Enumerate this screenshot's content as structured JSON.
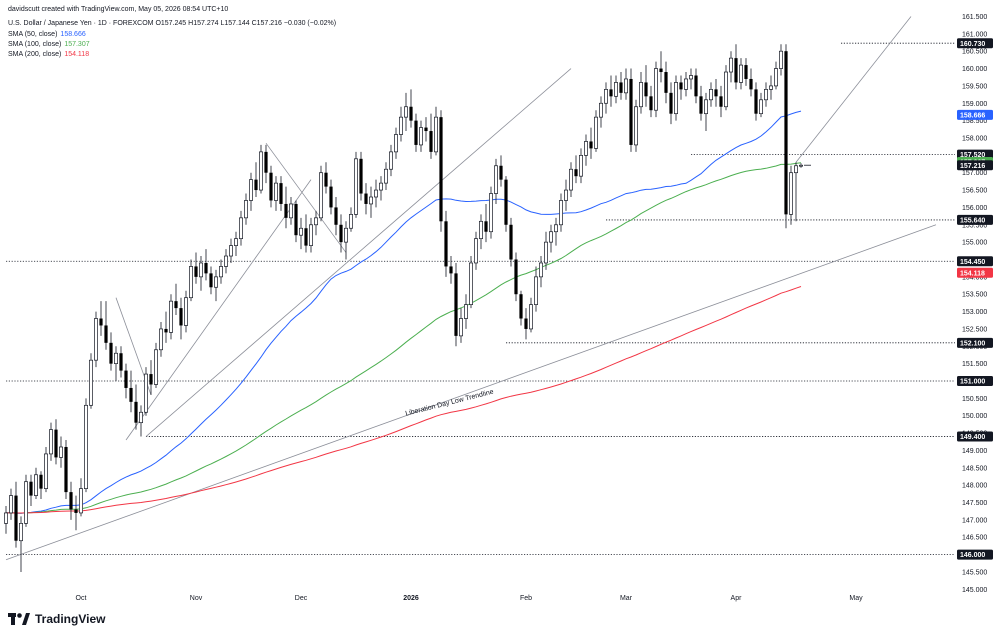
{
  "header": {
    "credit": "davidscutt created with TradingView.com, May 05, 2026 08:54 UTC+10",
    "symbol_line": "U.S. Dollar / Japanese Yen · 1D · FOREXCOM  O157.245  H157.274  L157.144  C157.216  −0.030 (−0.02%)",
    "sma50_label": "SMA (50, close)",
    "sma50_value": "158.666",
    "sma100_label": "SMA (100, close)",
    "sma100_value": "157.307",
    "sma200_label": "SMA (200, close)",
    "sma200_value": "154.118"
  },
  "brand": {
    "name": "TradingView",
    "logo_icon": "tradingview-logo-icon"
  },
  "colors": {
    "up": "#131722",
    "down": "#000000",
    "sma50": "#2962ff",
    "sma100": "#4caf50",
    "sma200": "#f23645",
    "grid_line": "#787b86"
  },
  "chart_data": {
    "type": "candlestick",
    "y_axis": {
      "min": 144.75,
      "max": 161.6,
      "ticks": [
        "161.500",
        "161.000",
        "160.500",
        "160.000",
        "159.500",
        "159.000",
        "158.500",
        "158.000",
        "157.500",
        "157.000",
        "156.500",
        "156.000",
        "155.500",
        "155.000",
        "154.500",
        "154.000",
        "153.500",
        "153.000",
        "152.500",
        "152.000",
        "151.500",
        "151.000",
        "150.500",
        "150.000",
        "149.500",
        "149.000",
        "148.500",
        "148.000",
        "147.500",
        "147.000",
        "146.500",
        "146.000",
        "145.500",
        "145.000"
      ]
    },
    "x_axis": {
      "labels": [
        {
          "label": "Oct",
          "bar": 15
        },
        {
          "label": "Nov",
          "bar": 38
        },
        {
          "label": "Dec",
          "bar": 59
        },
        {
          "label": "2026",
          "bar": 81
        },
        {
          "label": "Feb",
          "bar": 104
        },
        {
          "label": "Mar",
          "bar": 124
        },
        {
          "label": "Apr",
          "bar": 146
        },
        {
          "label": "May",
          "bar": 170
        }
      ]
    },
    "horizontal_levels": [
      {
        "value": 160.73,
        "label": "160.730",
        "from_bar": 167
      },
      {
        "value": 157.52,
        "label": "157.520",
        "from_bar": 137
      },
      {
        "value": 155.64,
        "label": "155.640",
        "from_bar": 120
      },
      {
        "value": 154.45,
        "label": "154.450",
        "from_bar": 0
      },
      {
        "value": 152.1,
        "label": "152.100",
        "from_bar": 100
      },
      {
        "value": 151.0,
        "label": "151.000",
        "from_bar": 0
      },
      {
        "value": 149.4,
        "label": "149.400",
        "from_bar": 28
      },
      {
        "value": 146.0,
        "label": "146.000",
        "from_bar": 0
      }
    ],
    "current_price": {
      "value": 157.216,
      "label": "157.216"
    },
    "sma_badges": [
      {
        "name": "SMA 50",
        "value": 158.666,
        "label": "158.666",
        "color": "#2962ff"
      },
      {
        "name": "SMA 100",
        "value": 157.307,
        "label": "157.307",
        "color": "#4caf50"
      },
      {
        "name": "SMA 200",
        "value": 154.118,
        "label": "154.118",
        "color": "#f23645"
      }
    ],
    "trendlines": [
      {
        "x1": 0,
        "y1": 145.85,
        "x2": 186,
        "y2": 155.5
      },
      {
        "x1": 28,
        "y1": 149.4,
        "x2": 113,
        "y2": 160.0
      },
      {
        "x1": 24,
        "y1": 149.3,
        "x2": 61,
        "y2": 156.8
      },
      {
        "x1": 52,
        "y1": 157.85,
        "x2": 68,
        "y2": 154.7
      },
      {
        "x1": 22,
        "y1": 153.4,
        "x2": 29,
        "y2": 150.6
      },
      {
        "x1": 158,
        "y1": 157.3,
        "x2": 181,
        "y2": 161.5
      }
    ],
    "annotation": {
      "text": "Liberation Day Low Trendline",
      "x": 80,
      "y": 150.0,
      "angle": -14.2
    },
    "candles": [
      [
        146.9,
        147.4,
        146.6,
        147.2
      ],
      [
        147.2,
        147.9,
        147.0,
        147.7
      ],
      [
        147.7,
        148.1,
        146.2,
        146.4
      ],
      [
        146.4,
        147.1,
        145.5,
        146.9
      ],
      [
        146.9,
        148.3,
        146.8,
        148.1
      ],
      [
        148.1,
        148.3,
        147.4,
        147.7
      ],
      [
        147.7,
        148.5,
        147.6,
        148.3
      ],
      [
        148.3,
        148.4,
        147.6,
        147.9
      ],
      [
        147.9,
        149.1,
        147.8,
        148.9
      ],
      [
        148.9,
        149.8,
        148.7,
        149.6
      ],
      [
        149.6,
        149.9,
        148.6,
        148.8
      ],
      [
        148.8,
        149.4,
        148.5,
        149.1
      ],
      [
        149.1,
        149.3,
        147.6,
        147.8
      ],
      [
        147.8,
        148.1,
        147.0,
        147.3
      ],
      [
        147.3,
        147.7,
        146.7,
        147.2
      ],
      [
        147.2,
        148.2,
        147.1,
        147.9
      ],
      [
        147.9,
        150.5,
        147.8,
        150.3
      ],
      [
        150.3,
        151.8,
        150.2,
        151.6
      ],
      [
        151.6,
        153.0,
        151.4,
        152.8
      ],
      [
        152.8,
        153.3,
        152.3,
        152.6
      ],
      [
        152.6,
        153.3,
        151.9,
        152.1
      ],
      [
        152.1,
        152.4,
        151.3,
        151.5
      ],
      [
        151.5,
        152.0,
        151.0,
        151.8
      ],
      [
        151.8,
        152.0,
        151.1,
        151.3
      ],
      [
        151.3,
        151.5,
        150.5,
        150.8
      ],
      [
        150.8,
        151.3,
        150.1,
        150.4
      ],
      [
        150.4,
        150.9,
        149.6,
        149.8
      ],
      [
        149.8,
        150.3,
        149.4,
        150.1
      ],
      [
        150.1,
        151.4,
        150.0,
        151.2
      ],
      [
        151.2,
        151.6,
        150.6,
        150.9
      ],
      [
        150.9,
        152.1,
        150.8,
        151.9
      ],
      [
        151.9,
        152.7,
        151.7,
        152.5
      ],
      [
        152.5,
        153.0,
        152.1,
        152.4
      ],
      [
        152.4,
        153.5,
        152.2,
        153.3
      ],
      [
        153.3,
        153.8,
        152.9,
        153.1
      ],
      [
        153.1,
        153.4,
        152.2,
        152.6
      ],
      [
        152.6,
        153.6,
        152.4,
        153.4
      ],
      [
        153.4,
        154.5,
        153.3,
        154.3
      ],
      [
        154.3,
        154.7,
        153.8,
        154.0
      ],
      [
        154.0,
        154.6,
        153.6,
        154.4
      ],
      [
        154.4,
        154.8,
        153.9,
        154.1
      ],
      [
        154.1,
        154.3,
        153.5,
        153.7
      ],
      [
        153.7,
        154.2,
        153.3,
        154.0
      ],
      [
        154.0,
        154.5,
        153.8,
        154.3
      ],
      [
        154.3,
        154.8,
        154.1,
        154.6
      ],
      [
        154.6,
        155.1,
        154.4,
        154.9
      ],
      [
        154.9,
        155.3,
        154.6,
        155.1
      ],
      [
        155.1,
        155.9,
        154.9,
        155.7
      ],
      [
        155.7,
        156.4,
        155.5,
        156.2
      ],
      [
        156.2,
        157.0,
        155.9,
        156.8
      ],
      [
        156.8,
        157.3,
        156.3,
        156.5
      ],
      [
        156.5,
        157.8,
        156.4,
        157.6
      ],
      [
        157.6,
        157.8,
        156.7,
        157.0
      ],
      [
        157.0,
        157.2,
        156.0,
        156.2
      ],
      [
        156.2,
        156.9,
        155.9,
        156.7
      ],
      [
        156.7,
        156.9,
        155.9,
        156.1
      ],
      [
        156.1,
        156.6,
        155.4,
        155.7
      ],
      [
        155.7,
        156.3,
        155.5,
        156.1
      ],
      [
        156.1,
        156.2,
        155.0,
        155.2
      ],
      [
        155.2,
        155.7,
        154.8,
        155.4
      ],
      [
        155.4,
        155.8,
        154.7,
        154.9
      ],
      [
        154.9,
        155.7,
        154.7,
        155.5
      ],
      [
        155.5,
        155.9,
        155.2,
        155.7
      ],
      [
        155.7,
        157.2,
        155.6,
        157.0
      ],
      [
        157.0,
        157.3,
        156.4,
        156.6
      ],
      [
        156.6,
        156.8,
        155.8,
        156.0
      ],
      [
        156.0,
        156.3,
        155.2,
        155.5
      ],
      [
        155.5,
        155.8,
        154.7,
        155.0
      ],
      [
        155.0,
        155.6,
        154.5,
        155.4
      ],
      [
        155.4,
        156.0,
        155.3,
        155.8
      ],
      [
        155.8,
        157.6,
        155.7,
        157.4
      ],
      [
        157.4,
        157.6,
        156.2,
        156.4
      ],
      [
        156.4,
        156.7,
        155.8,
        156.1
      ],
      [
        156.1,
        156.6,
        155.7,
        156.3
      ],
      [
        156.3,
        156.8,
        156.0,
        156.5
      ],
      [
        156.5,
        156.9,
        156.2,
        156.7
      ],
      [
        156.7,
        157.3,
        156.5,
        157.1
      ],
      [
        157.1,
        157.8,
        156.9,
        157.6
      ],
      [
        157.6,
        158.3,
        157.4,
        158.1
      ],
      [
        158.1,
        158.9,
        157.9,
        158.6
      ],
      [
        158.6,
        159.3,
        158.2,
        158.9
      ],
      [
        158.9,
        159.4,
        158.3,
        158.5
      ],
      [
        158.5,
        158.7,
        157.6,
        157.8
      ],
      [
        157.8,
        158.5,
        157.6,
        158.3
      ],
      [
        158.3,
        158.6,
        157.9,
        158.2
      ],
      [
        158.2,
        158.7,
        157.4,
        157.6
      ],
      [
        157.6,
        158.9,
        157.5,
        158.6
      ],
      [
        158.6,
        158.8,
        155.3,
        155.6
      ],
      [
        155.6,
        155.9,
        154.0,
        154.3
      ],
      [
        154.3,
        154.6,
        153.8,
        154.1
      ],
      [
        154.1,
        154.4,
        152.0,
        152.3
      ],
      [
        152.3,
        153.1,
        152.1,
        152.8
      ],
      [
        152.8,
        153.5,
        152.5,
        153.2
      ],
      [
        153.2,
        154.6,
        153.1,
        154.4
      ],
      [
        154.4,
        155.3,
        154.2,
        155.1
      ],
      [
        155.1,
        155.8,
        154.8,
        155.6
      ],
      [
        155.6,
        156.1,
        155.0,
        155.3
      ],
      [
        155.3,
        156.6,
        155.1,
        156.4
      ],
      [
        156.4,
        157.4,
        156.1,
        157.2
      ],
      [
        157.2,
        157.5,
        156.6,
        156.8
      ],
      [
        156.8,
        156.9,
        155.3,
        155.5
      ],
      [
        155.5,
        155.7,
        154.3,
        154.5
      ],
      [
        154.5,
        154.7,
        153.3,
        153.5
      ],
      [
        153.5,
        153.6,
        152.6,
        152.8
      ],
      [
        152.8,
        153.1,
        152.2,
        152.5
      ],
      [
        152.5,
        153.4,
        152.4,
        153.2
      ],
      [
        153.2,
        154.3,
        153.0,
        154.0
      ],
      [
        154.0,
        154.6,
        153.7,
        154.4
      ],
      [
        154.4,
        155.3,
        154.2,
        155.0
      ],
      [
        155.0,
        155.5,
        154.7,
        155.3
      ],
      [
        155.3,
        155.7,
        154.9,
        155.5
      ],
      [
        155.5,
        156.4,
        155.3,
        156.2
      ],
      [
        156.2,
        156.8,
        155.9,
        156.5
      ],
      [
        156.5,
        157.3,
        156.3,
        157.1
      ],
      [
        157.1,
        157.5,
        156.7,
        156.9
      ],
      [
        156.9,
        157.7,
        156.7,
        157.5
      ],
      [
        157.5,
        158.1,
        157.2,
        157.9
      ],
      [
        157.9,
        158.3,
        157.4,
        157.7
      ],
      [
        157.7,
        158.8,
        157.6,
        158.6
      ],
      [
        158.6,
        159.2,
        158.3,
        159.0
      ],
      [
        159.0,
        159.6,
        158.7,
        159.4
      ],
      [
        159.4,
        159.8,
        158.9,
        159.2
      ],
      [
        159.2,
        159.8,
        159.0,
        159.6
      ],
      [
        159.6,
        159.9,
        159.1,
        159.3
      ],
      [
        159.3,
        160.0,
        159.1,
        159.7
      ],
      [
        159.7,
        160.0,
        157.6,
        157.8
      ],
      [
        157.8,
        159.1,
        157.6,
        158.9
      ],
      [
        158.9,
        159.9,
        158.7,
        159.6
      ],
      [
        159.6,
        160.1,
        158.9,
        159.2
      ],
      [
        159.2,
        159.5,
        158.6,
        158.8
      ],
      [
        158.8,
        160.2,
        158.6,
        160.0
      ],
      [
        160.0,
        160.5,
        159.6,
        159.9
      ],
      [
        159.9,
        160.2,
        159.0,
        159.3
      ],
      [
        159.3,
        159.6,
        158.4,
        158.7
      ],
      [
        158.7,
        159.8,
        158.5,
        159.6
      ],
      [
        159.6,
        159.8,
        159.1,
        159.4
      ],
      [
        159.4,
        159.9,
        159.2,
        159.7
      ],
      [
        159.7,
        160.0,
        159.4,
        159.8
      ],
      [
        159.8,
        160.0,
        159.0,
        159.2
      ],
      [
        159.2,
        159.5,
        158.5,
        158.7
      ],
      [
        158.7,
        159.3,
        158.2,
        159.1
      ],
      [
        159.1,
        159.6,
        158.9,
        159.4
      ],
      [
        159.4,
        159.7,
        158.9,
        159.2
      ],
      [
        159.2,
        159.5,
        158.6,
        158.9
      ],
      [
        158.9,
        160.1,
        158.8,
        159.9
      ],
      [
        159.9,
        160.5,
        159.6,
        160.3
      ],
      [
        160.3,
        160.7,
        159.4,
        159.6
      ],
      [
        159.6,
        160.3,
        159.4,
        160.1
      ],
      [
        160.1,
        160.3,
        159.5,
        159.7
      ],
      [
        159.7,
        160.0,
        159.2,
        159.4
      ],
      [
        159.4,
        159.6,
        158.5,
        158.7
      ],
      [
        158.7,
        159.3,
        158.6,
        159.1
      ],
      [
        159.1,
        159.6,
        158.9,
        159.4
      ],
      [
        159.4,
        159.8,
        159.1,
        159.5
      ],
      [
        159.5,
        160.2,
        159.4,
        160.0
      ],
      [
        160.0,
        160.7,
        159.8,
        160.5
      ],
      [
        160.5,
        160.7,
        155.4,
        155.8
      ],
      [
        155.8,
        157.2,
        155.5,
        157.0
      ],
      [
        157.0,
        157.3,
        155.6,
        157.2
      ],
      [
        157.2,
        157.274,
        157.144,
        157.216
      ]
    ]
  }
}
